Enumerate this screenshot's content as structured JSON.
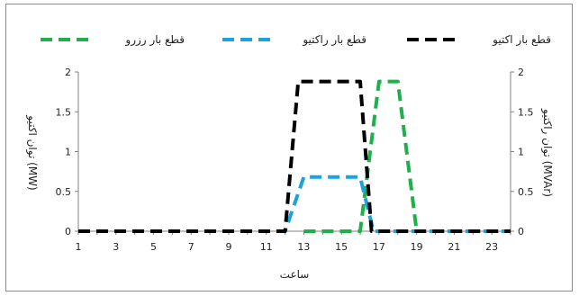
{
  "chart_data": {
    "type": "line",
    "xlabel": "ساعت",
    "ylabel_left": "توان اکتیو (MW)",
    "ylabel_right": "توان راکتیو (MVAr)",
    "xlim": [
      1,
      24
    ],
    "x_ticks": [
      1,
      3,
      5,
      7,
      9,
      11,
      13,
      15,
      17,
      19,
      21,
      23
    ],
    "ylim": [
      0,
      2
    ],
    "y_ticks": [
      0,
      0.5,
      1,
      1.5,
      2
    ],
    "grid": false,
    "legend_position": "top",
    "series": [
      {
        "name": "قطع بار اکتیو",
        "color": "#000000",
        "axis": "left",
        "points": [
          [
            1,
            0
          ],
          [
            2,
            0
          ],
          [
            3,
            0
          ],
          [
            4,
            0
          ],
          [
            5,
            0
          ],
          [
            6,
            0
          ],
          [
            7,
            0
          ],
          [
            8,
            0
          ],
          [
            9,
            0
          ],
          [
            10,
            0
          ],
          [
            11,
            0
          ],
          [
            12,
            0
          ],
          [
            12.7,
            1.88
          ],
          [
            13,
            1.88
          ],
          [
            14,
            1.88
          ],
          [
            15,
            1.88
          ],
          [
            16,
            1.88
          ],
          [
            16.6,
            0
          ],
          [
            17,
            0
          ],
          [
            18,
            0
          ],
          [
            19,
            0
          ],
          [
            20,
            0
          ],
          [
            21,
            0
          ],
          [
            22,
            0
          ],
          [
            23,
            0
          ],
          [
            24,
            0
          ]
        ]
      },
      {
        "name": "قطع بار راکتیو",
        "color": "#1aa3e0",
        "axis": "right",
        "points": [
          [
            1,
            0
          ],
          [
            2,
            0
          ],
          [
            3,
            0
          ],
          [
            4,
            0
          ],
          [
            5,
            0
          ],
          [
            6,
            0
          ],
          [
            7,
            0
          ],
          [
            8,
            0
          ],
          [
            9,
            0
          ],
          [
            10,
            0
          ],
          [
            11,
            0
          ],
          [
            12,
            0
          ],
          [
            13,
            0.68
          ],
          [
            14,
            0.68
          ],
          [
            15,
            0.68
          ],
          [
            16,
            0.68
          ],
          [
            16.7,
            0
          ],
          [
            17,
            0
          ],
          [
            18,
            0
          ],
          [
            19,
            0
          ],
          [
            20,
            0
          ],
          [
            21,
            0
          ],
          [
            22,
            0
          ],
          [
            23,
            0
          ],
          [
            24,
            0
          ]
        ]
      },
      {
        "name": "قطع بار رزرو",
        "color": "#1eb04b",
        "axis": "left",
        "points": [
          [
            13,
            0
          ],
          [
            14,
            0
          ],
          [
            15,
            0
          ],
          [
            16,
            0
          ],
          [
            17,
            1.88
          ],
          [
            18,
            1.88
          ],
          [
            19,
            0
          ]
        ]
      }
    ]
  }
}
